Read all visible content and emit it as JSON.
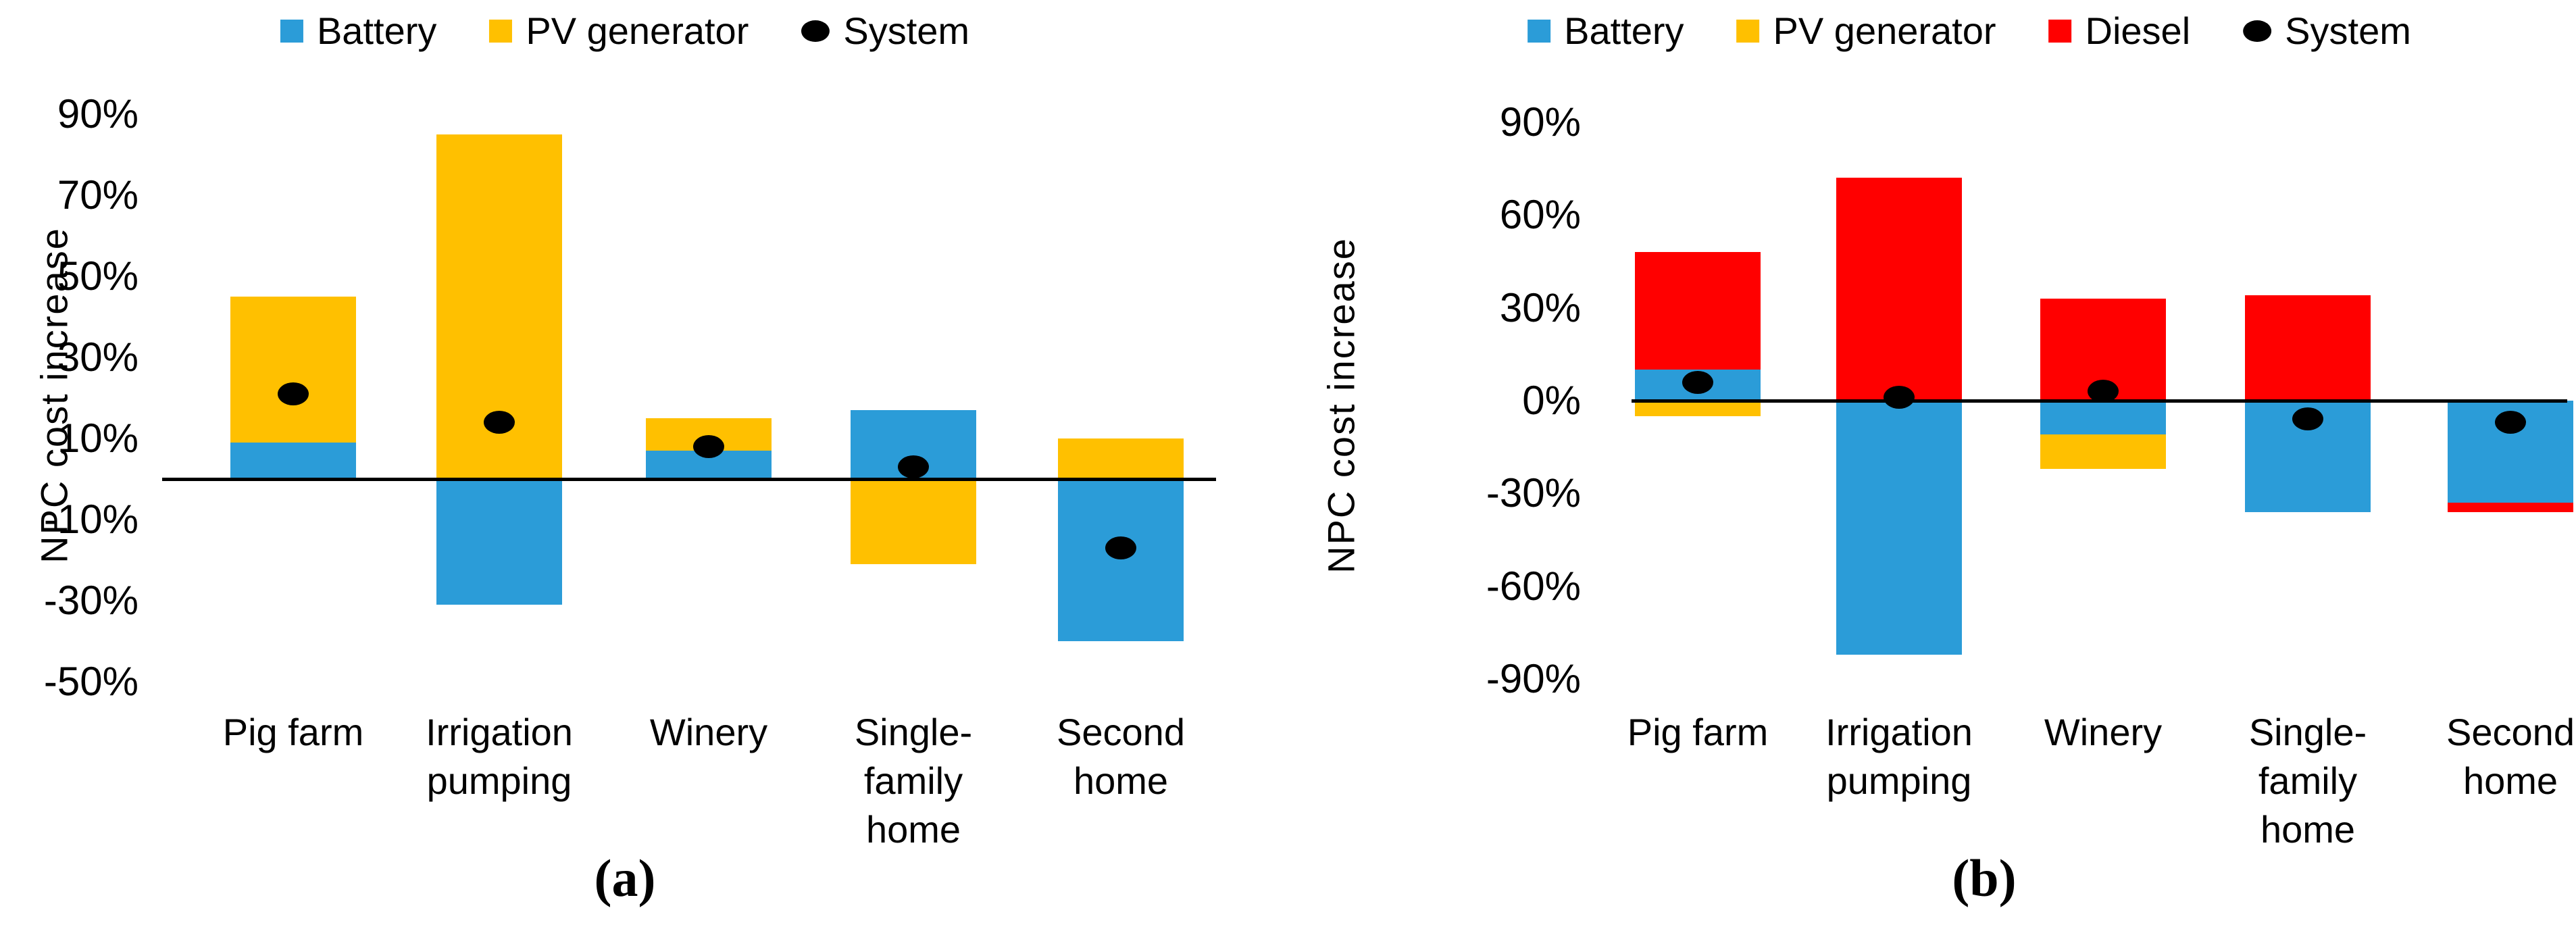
{
  "page": {
    "background": "#ffffff"
  },
  "colors": {
    "battery": "#2B9CD8",
    "pv_generator": "#FFC000",
    "diesel": "#FF0000",
    "system": "#000000",
    "axis": "#000000"
  },
  "chart_data": [
    {
      "id": "a",
      "type": "bar",
      "stacked": true,
      "caption": "(a)",
      "title": "",
      "xlabel": "",
      "ylabel": "NPC cost increase",
      "units": "percent",
      "grid": false,
      "legend_position": "top",
      "ylim": [
        -50,
        90
      ],
      "yticks": [
        {
          "label": "90%",
          "value": 90
        },
        {
          "label": "70%",
          "value": 70
        },
        {
          "label": "50%",
          "value": 50
        },
        {
          "label": "30%",
          "value": 30
        },
        {
          "label": "10%",
          "value": 10
        },
        {
          "label": "-10%",
          "value": -10
        },
        {
          "label": "-30%",
          "value": -30
        },
        {
          "label": "-50%",
          "value": -50
        }
      ],
      "categories": [
        "Pig farm",
        "Irrigation pumping",
        "Winery",
        "Single-family home",
        "Second home"
      ],
      "series": [
        {
          "name": "Battery",
          "color_key": "battery",
          "marker": "square",
          "values": [
            9,
            -31,
            7,
            17,
            -40
          ]
        },
        {
          "name": "PV generator",
          "color_key": "pv_generator",
          "marker": "square",
          "values": [
            36,
            85,
            8,
            -21,
            10
          ]
        },
        {
          "name": "System",
          "color_key": "system",
          "marker": "dot",
          "point": true,
          "values": [
            21,
            14,
            8,
            3,
            -17
          ]
        }
      ]
    },
    {
      "id": "b",
      "type": "bar",
      "stacked": true,
      "caption": "(b)",
      "title": "",
      "xlabel": "",
      "ylabel": "NPC cost increase",
      "units": "percent",
      "grid": false,
      "legend_position": "top",
      "ylim": [
        -90,
        90
      ],
      "yticks": [
        {
          "label": "90%",
          "value": 90
        },
        {
          "label": "60%",
          "value": 60
        },
        {
          "label": "30%",
          "value": 30
        },
        {
          "label": "0%",
          "value": 0
        },
        {
          "label": "-30%",
          "value": -30
        },
        {
          "label": "-60%",
          "value": -60
        },
        {
          "label": "-90%",
          "value": -90
        }
      ],
      "categories": [
        "Pig farm",
        "Irrigation pumping",
        "Winery",
        "Single-family home",
        "Second home"
      ],
      "series": [
        {
          "name": "Battery",
          "color_key": "battery",
          "marker": "square",
          "values": [
            10,
            -82,
            -11,
            -36,
            -33
          ]
        },
        {
          "name": "PV generator",
          "color_key": "pv_generator",
          "marker": "square",
          "values": [
            -5,
            0,
            -11,
            0,
            0
          ]
        },
        {
          "name": "Diesel",
          "color_key": "diesel",
          "marker": "square",
          "values": [
            38,
            72,
            33,
            34,
            -3
          ]
        },
        {
          "name": "System",
          "color_key": "system",
          "marker": "dot",
          "point": true,
          "values": [
            6,
            1,
            3,
            -6,
            -7
          ]
        }
      ]
    }
  ]
}
